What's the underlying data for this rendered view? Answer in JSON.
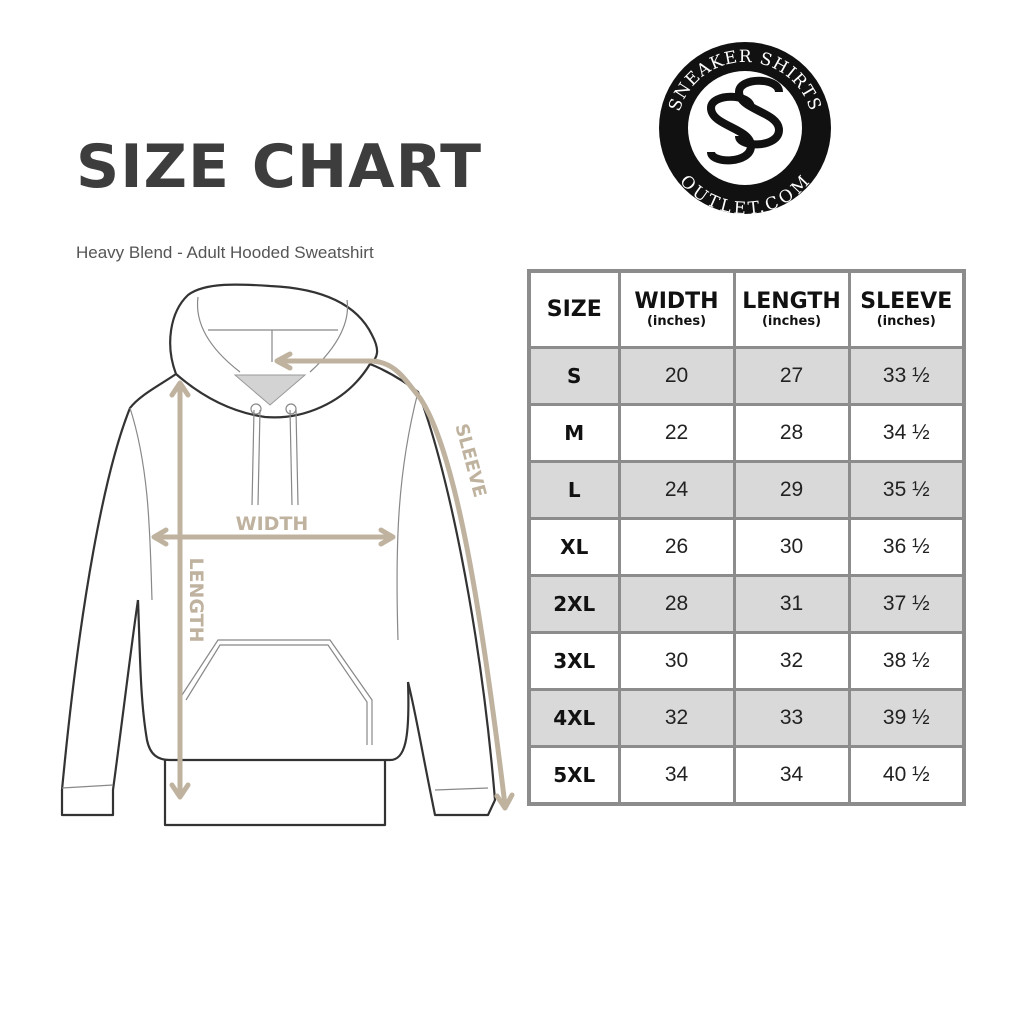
{
  "title": "SIZE CHART",
  "subtitle": "Heavy Blend - Adult Hooded Sweatshirt",
  "logo": {
    "top_text": "SNEAKER SHIRTS",
    "bottom_text": "OUTLET.COM",
    "monogram": "SS"
  },
  "diagram": {
    "width_label": "WIDTH",
    "length_label": "LENGTH",
    "sleeve_label": "SLEEVE",
    "accent_color": "#bfb39f"
  },
  "table": {
    "headers": [
      {
        "label": "SIZE",
        "unit": ""
      },
      {
        "label": "WIDTH",
        "unit": "(inches)"
      },
      {
        "label": "LENGTH",
        "unit": "(inches)"
      },
      {
        "label": "SLEEVE",
        "unit": "(inches)"
      }
    ],
    "rows": [
      [
        "S",
        "20",
        "27",
        "33 ½"
      ],
      [
        "M",
        "22",
        "28",
        "34 ½"
      ],
      [
        "L",
        "24",
        "29",
        "35 ½"
      ],
      [
        "XL",
        "26",
        "30",
        "36 ½"
      ],
      [
        "2XL",
        "28",
        "31",
        "37 ½"
      ],
      [
        "3XL",
        "30",
        "32",
        "38 ½"
      ],
      [
        "4XL",
        "32",
        "33",
        "39 ½"
      ],
      [
        "5XL",
        "34",
        "34",
        "40 ½"
      ]
    ],
    "shade_color": "#d9d9d9",
    "border_color": "#8c8c8c"
  }
}
